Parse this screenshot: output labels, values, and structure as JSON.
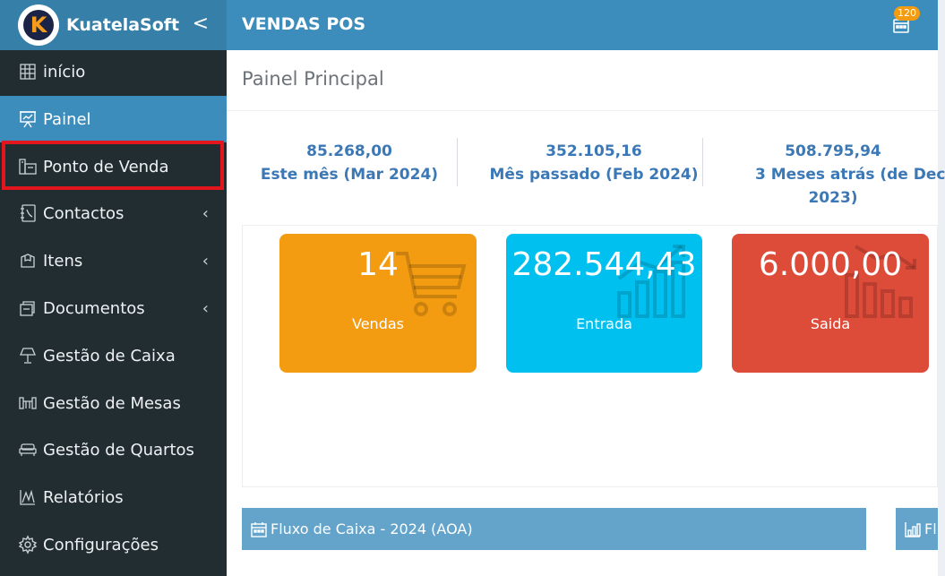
{
  "brand": {
    "name": "KuatelaSoft",
    "logo_letter": "K",
    "toggle": "<"
  },
  "header": {
    "title": "VENDAS POS",
    "notification_count": "120"
  },
  "sidebar": {
    "items": [
      {
        "label": "início",
        "icon": "dashboard-grid-icon",
        "has_submenu": false
      },
      {
        "label": "Painel",
        "icon": "presentation-icon",
        "has_submenu": false,
        "active": true
      },
      {
        "label": "Ponto de Venda",
        "icon": "pos-terminal-icon",
        "has_submenu": false
      },
      {
        "label": "Contactos",
        "icon": "address-book-icon",
        "has_submenu": true
      },
      {
        "label": "Itens",
        "icon": "package-icon",
        "has_submenu": true
      },
      {
        "label": "Documentos",
        "icon": "documents-icon",
        "has_submenu": true
      },
      {
        "label": "Gestão de Caixa",
        "icon": "lamp-icon",
        "has_submenu": false
      },
      {
        "label": "Gestão de Mesas",
        "icon": "tables-icon",
        "has_submenu": false
      },
      {
        "label": "Gestão de Quartos",
        "icon": "sofa-icon",
        "has_submenu": false
      },
      {
        "label": "Relatórios",
        "icon": "chart-icon",
        "has_submenu": false
      },
      {
        "label": "Configurações",
        "icon": "gear-icon",
        "has_submenu": false
      }
    ],
    "submenu_arrow": "‹"
  },
  "page": {
    "title": "Painel Principal"
  },
  "summary": [
    {
      "value": "85.268,00",
      "label": "Este mês (Mar 2024)"
    },
    {
      "value": "352.105,16",
      "label": "Mês passado (Feb 2024)"
    },
    {
      "value": "508.795,94",
      "label_line1": "3 Meses atrás (de Dec",
      "label_line2": "2023)"
    }
  ],
  "boxes": [
    {
      "value": "14",
      "label": "Vendas",
      "color": "#f39c12",
      "icon": "shopping-cart-icon"
    },
    {
      "value": "282.544,43",
      "label": "Entrada",
      "color": "#00c0ef",
      "icon": "bar-chart-up-icon"
    },
    {
      "value": "6.000,00",
      "label": "Saida",
      "color": "#dd4b39",
      "icon": "bar-chart-down-icon"
    }
  ],
  "panels": {
    "cash_flow_title": "Fluxo de Caixa - 2024 (AOA)",
    "right_panel_title": "Fl"
  },
  "colors": {
    "sidebar_bg": "#222d32",
    "header_bg": "#3c8dbc",
    "brand_bg": "#367fa9",
    "active_item": "#3c8dbc",
    "highlight": "#e3161e"
  }
}
